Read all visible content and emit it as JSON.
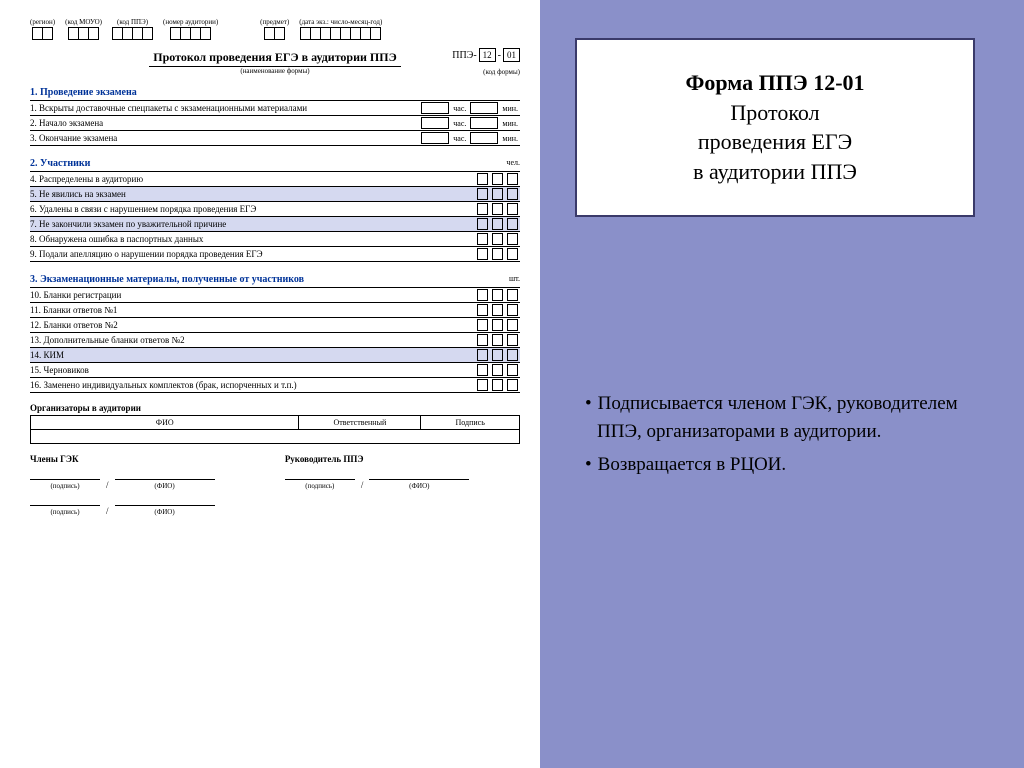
{
  "header_codes": [
    {
      "label": "(регион)",
      "cells": 2
    },
    {
      "label": "(код МОУО)",
      "cells": 3
    },
    {
      "label": "(код ППЭ)",
      "cells": 4
    },
    {
      "label": "(номер аудитории)",
      "cells": 4
    },
    {
      "label": "(предмет)",
      "cells": 2
    },
    {
      "label": "(дата экз.: число-месяц-год)",
      "cells": 8
    }
  ],
  "doc_title": "Протокол проведения ЕГЭ в аудитории ППЭ",
  "doc_title_sub": "(наименование формы)",
  "form_code_prefix": "ППЭ-",
  "form_code_1": "12",
  "form_code_2": "01",
  "form_code_sub": "(код формы)",
  "s1": {
    "title": "1. Проведение экзамена",
    "rows": [
      "1. Вскрыты доставочные спецпакеты с экзаменационными материалами",
      "2. Начало экзамена",
      "3. Окончание экзамена"
    ],
    "u_hour": "час.",
    "u_min": "мин."
  },
  "s2": {
    "title": "2. Участники",
    "unit": "чел.",
    "rows": [
      {
        "t": "4. Распределены в аудиторию",
        "sh": false
      },
      {
        "t": "5. Не явились на экзамен",
        "sh": true
      },
      {
        "t": "6. Удалены в связи с нарушением порядка проведения ЕГЭ",
        "sh": false
      },
      {
        "t": "7. Не закончили экзамен по уважительной причине",
        "sh": true
      },
      {
        "t": "8. Обнаружена ошибка в паспортных данных",
        "sh": false
      },
      {
        "t": "9. Подали апелляцию о нарушении порядка проведения ЕГЭ",
        "sh": false
      }
    ]
  },
  "s3": {
    "title": "3. Экзаменационные материалы, полученные от участников",
    "unit": "шт.",
    "rows": [
      {
        "t": "10. Бланки регистрации",
        "sh": false
      },
      {
        "t": "11. Бланки ответов №1",
        "sh": false
      },
      {
        "t": "12. Бланки ответов №2",
        "sh": false
      },
      {
        "t": "13. Дополнительные бланки ответов №2",
        "sh": false
      },
      {
        "t": "14. КИМ",
        "sh": true
      },
      {
        "t": "15. Черновиков",
        "sh": false
      },
      {
        "t": "16. Заменено индивидуальных комплектов (брак, испорченных и т.п.)",
        "sh": false
      }
    ]
  },
  "org": {
    "title": "Организаторы в аудитории",
    "cols": [
      "ФИО",
      "Ответственный",
      "Подпись"
    ]
  },
  "sig": {
    "left_title": "Члены ГЭК",
    "right_title": "Руководитель ППЭ",
    "l_pod": "(подпись)",
    "l_fio": "(ФИО)"
  },
  "panel": {
    "line1": "Форма ППЭ 12-01",
    "line2": "Протокол",
    "line3": "проведения ЕГЭ",
    "line4": "в аудитории ППЭ"
  },
  "bullets": [
    "Подписывается  членом ГЭК, руководителем ППЭ, организаторами в аудитории.",
    "Возвращается в РЦОИ."
  ]
}
